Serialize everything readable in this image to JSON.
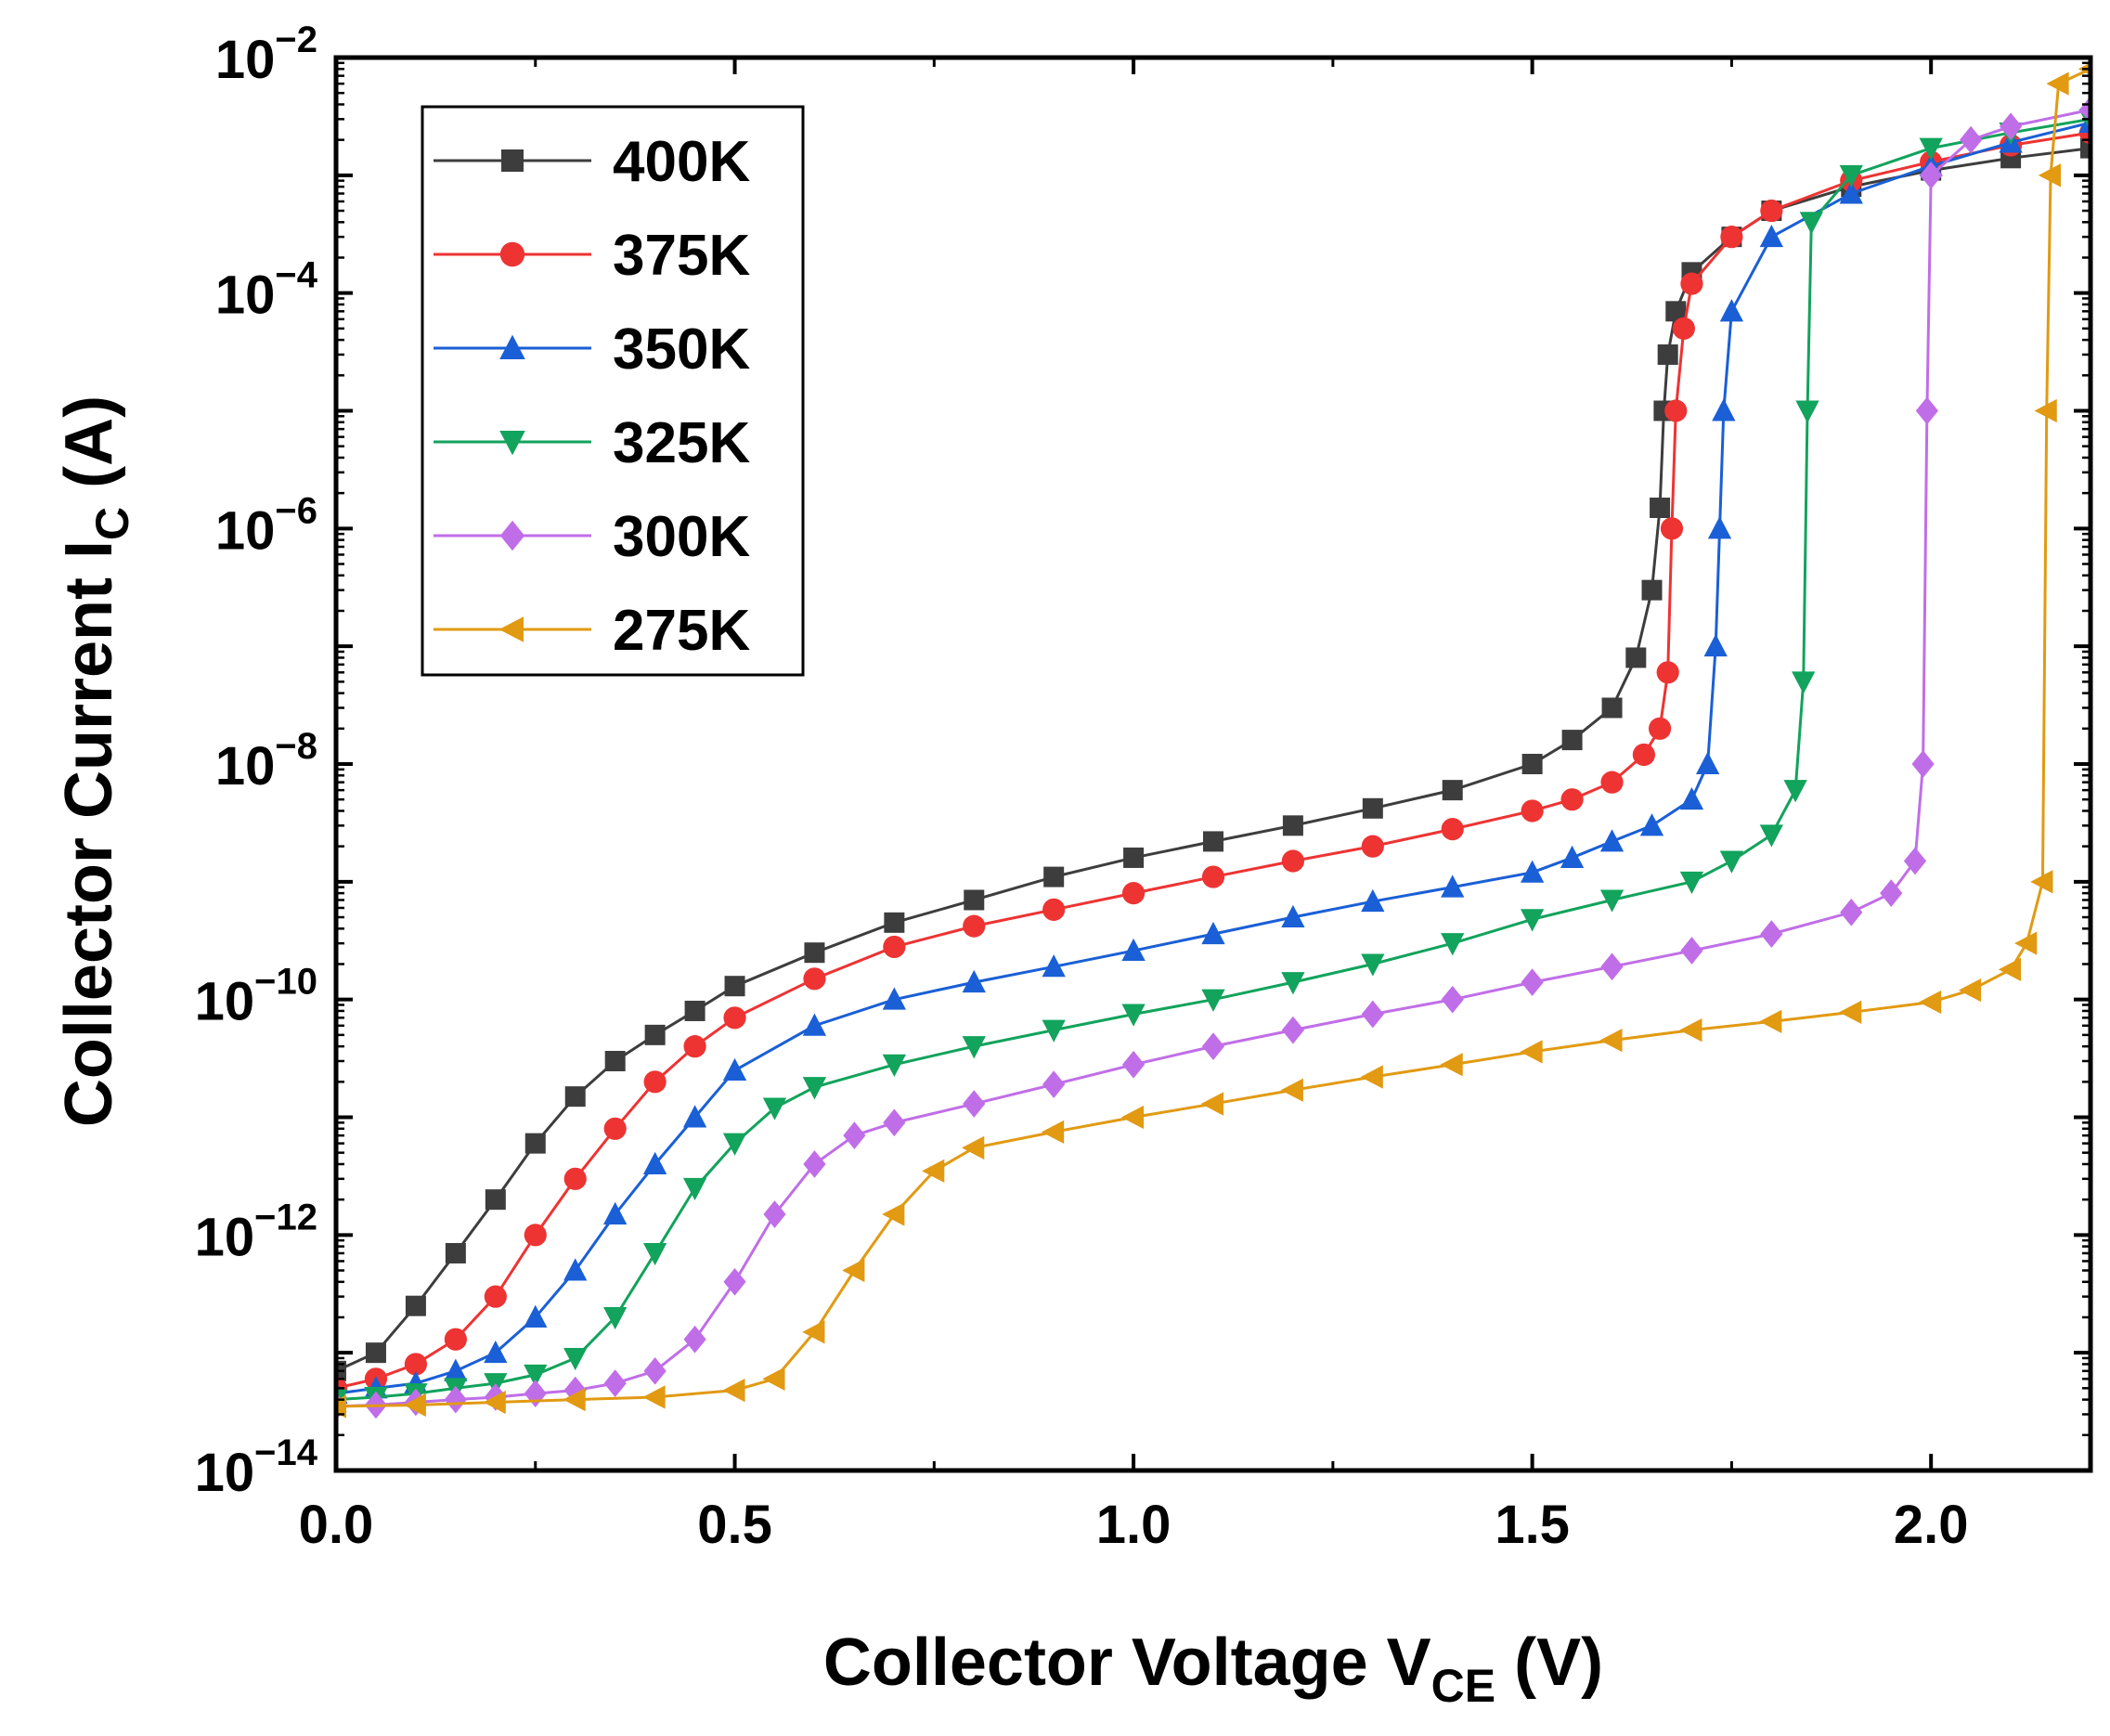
{
  "chart_data": {
    "type": "line",
    "title": "",
    "xlabel": {
      "main": "Collector Voltage V",
      "sub": "CE",
      "unit": " (V)"
    },
    "ylabel": {
      "main": "Collector Current I",
      "sub": "C",
      "unit": " (A)"
    },
    "xlim": [
      0,
      2.2
    ],
    "ylim": [
      1e-14,
      0.01
    ],
    "yscale": "log",
    "x_ticks": [
      "0.0",
      "0.5",
      "1.0",
      "1.5",
      "2.0"
    ],
    "y_ticks": [
      {
        "base": "10",
        "exp": "−14"
      },
      {
        "base": "10",
        "exp": "−12"
      },
      {
        "base": "10",
        "exp": "−10"
      },
      {
        "base": "10",
        "exp": "−8"
      },
      {
        "base": "10",
        "exp": "−6"
      },
      {
        "base": "10",
        "exp": "−4"
      },
      {
        "base": "10",
        "exp": "−2"
      }
    ],
    "grid": false,
    "legend_position": "top-left",
    "series": [
      {
        "name": "400K",
        "color": "#3d3d3d",
        "marker": "square",
        "x": [
          0.0,
          0.05,
          0.1,
          0.15,
          0.2,
          0.25,
          0.3,
          0.35,
          0.4,
          0.45,
          0.5,
          0.6,
          0.7,
          0.8,
          0.9,
          1.0,
          1.1,
          1.2,
          1.3,
          1.4,
          1.5,
          1.55,
          1.6,
          1.63,
          1.65,
          1.66,
          1.665,
          1.67,
          1.68,
          1.7,
          1.75,
          1.8,
          1.9,
          2.0,
          2.1,
          2.2
        ],
        "y": [
          7e-14,
          1e-13,
          2.5e-13,
          7e-13,
          2e-12,
          6e-12,
          1.5e-11,
          3e-11,
          5e-11,
          8e-11,
          1.3e-10,
          2.5e-10,
          4.5e-10,
          7e-10,
          1.1e-09,
          1.6e-09,
          2.2e-09,
          3e-09,
          4.2e-09,
          6e-09,
          1e-08,
          1.6e-08,
          3e-08,
          8e-08,
          3e-07,
          1.5e-06,
          1e-05,
          3e-05,
          7e-05,
          0.00015,
          0.0003,
          0.0005,
          0.0008,
          0.0011,
          0.0014,
          0.0017
        ]
      },
      {
        "name": "375K",
        "color": "#ee3333",
        "marker": "circle",
        "x": [
          0.0,
          0.05,
          0.1,
          0.15,
          0.2,
          0.25,
          0.3,
          0.35,
          0.4,
          0.45,
          0.5,
          0.6,
          0.7,
          0.8,
          0.9,
          1.0,
          1.1,
          1.2,
          1.3,
          1.4,
          1.5,
          1.55,
          1.6,
          1.64,
          1.66,
          1.67,
          1.675,
          1.68,
          1.69,
          1.7,
          1.75,
          1.8,
          1.9,
          2.0,
          2.1,
          2.2
        ],
        "y": [
          5e-14,
          6e-14,
          8e-14,
          1.3e-13,
          3e-13,
          1e-12,
          3e-12,
          8e-12,
          2e-11,
          4e-11,
          7e-11,
          1.5e-10,
          2.8e-10,
          4.2e-10,
          5.8e-10,
          8e-10,
          1.1e-09,
          1.5e-09,
          2e-09,
          2.8e-09,
          4e-09,
          5e-09,
          7e-09,
          1.2e-08,
          2e-08,
          6e-08,
          1e-06,
          1e-05,
          5e-05,
          0.00012,
          0.0003,
          0.0005,
          0.0009,
          0.0013,
          0.0018,
          0.0023
        ]
      },
      {
        "name": "350K",
        "color": "#1a5fd6",
        "marker": "triangle-up",
        "x": [
          0.0,
          0.05,
          0.1,
          0.15,
          0.2,
          0.25,
          0.3,
          0.35,
          0.4,
          0.45,
          0.5,
          0.6,
          0.7,
          0.8,
          0.9,
          1.0,
          1.1,
          1.2,
          1.3,
          1.4,
          1.5,
          1.55,
          1.6,
          1.65,
          1.7,
          1.72,
          1.73,
          1.735,
          1.74,
          1.75,
          1.8,
          1.9,
          2.0,
          2.1,
          2.2
        ],
        "y": [
          4.5e-14,
          5e-14,
          5.5e-14,
          7e-14,
          1e-13,
          2e-13,
          5e-13,
          1.5e-12,
          4e-12,
          1e-11,
          2.5e-11,
          6e-11,
          1e-10,
          1.4e-10,
          1.9e-10,
          2.6e-10,
          3.6e-10,
          5e-10,
          6.8e-10,
          9e-10,
          1.2e-09,
          1.6e-09,
          2.2e-09,
          3e-09,
          5e-09,
          1e-08,
          1e-07,
          1e-06,
          1e-05,
          7e-05,
          0.0003,
          0.0007,
          0.0012,
          0.0019,
          0.0028
        ]
      },
      {
        "name": "325K",
        "color": "#12a35c",
        "marker": "triangle-down",
        "x": [
          0.0,
          0.05,
          0.1,
          0.15,
          0.2,
          0.25,
          0.3,
          0.35,
          0.4,
          0.45,
          0.5,
          0.55,
          0.6,
          0.7,
          0.8,
          0.9,
          1.0,
          1.1,
          1.2,
          1.3,
          1.4,
          1.5,
          1.6,
          1.7,
          1.75,
          1.8,
          1.83,
          1.84,
          1.845,
          1.85,
          1.9,
          2.0,
          2.1,
          2.2
        ],
        "y": [
          4e-14,
          4.2e-14,
          4.5e-14,
          5e-14,
          5.5e-14,
          6.5e-14,
          9e-14,
          2e-13,
          7e-13,
          2.5e-12,
          6e-12,
          1.2e-11,
          1.8e-11,
          2.8e-11,
          4e-11,
          5.5e-11,
          7.5e-11,
          1e-10,
          1.4e-10,
          2e-10,
          3e-10,
          4.8e-10,
          7e-10,
          1e-09,
          1.5e-09,
          2.5e-09,
          6e-09,
          5e-08,
          1e-05,
          0.0004,
          0.001,
          0.0017,
          0.0023,
          0.003
        ]
      },
      {
        "name": "300K",
        "color": "#c06ee8",
        "marker": "diamond",
        "x": [
          0.0,
          0.05,
          0.1,
          0.15,
          0.2,
          0.25,
          0.3,
          0.35,
          0.4,
          0.45,
          0.5,
          0.55,
          0.6,
          0.65,
          0.7,
          0.8,
          0.9,
          1.0,
          1.1,
          1.2,
          1.3,
          1.4,
          1.5,
          1.6,
          1.7,
          1.8,
          1.9,
          1.95,
          1.98,
          1.99,
          1.995,
          2.0,
          2.05,
          2.1,
          2.2
        ],
        "y": [
          3.5e-14,
          3.6e-14,
          3.8e-14,
          4e-14,
          4.2e-14,
          4.5e-14,
          4.8e-14,
          5.5e-14,
          7e-14,
          1.3e-13,
          4e-13,
          1.5e-12,
          4e-12,
          7e-12,
          9e-12,
          1.3e-11,
          1.9e-11,
          2.8e-11,
          4e-11,
          5.5e-11,
          7.5e-11,
          1e-10,
          1.4e-10,
          1.9e-10,
          2.6e-10,
          3.6e-10,
          5.5e-10,
          8e-10,
          1.5e-09,
          1e-08,
          1e-05,
          0.001,
          0.002,
          0.0026,
          0.0036
        ]
      },
      {
        "name": "275K",
        "color": "#e19a12",
        "marker": "triangle-left",
        "x": [
          0.0,
          0.1,
          0.2,
          0.3,
          0.4,
          0.5,
          0.55,
          0.6,
          0.65,
          0.7,
          0.75,
          0.8,
          0.9,
          1.0,
          1.1,
          1.2,
          1.3,
          1.4,
          1.5,
          1.6,
          1.7,
          1.8,
          1.9,
          2.0,
          2.05,
          2.1,
          2.12,
          2.14,
          2.145,
          2.15,
          2.16,
          2.2
        ],
        "y": [
          3.5e-14,
          3.6e-14,
          3.8e-14,
          4e-14,
          4.2e-14,
          4.8e-14,
          6e-14,
          1.5e-13,
          5e-13,
          1.5e-12,
          3.5e-12,
          5.5e-12,
          7.5e-12,
          1e-11,
          1.3e-11,
          1.7e-11,
          2.2e-11,
          2.8e-11,
          3.6e-11,
          4.5e-11,
          5.5e-11,
          6.5e-11,
          7.8e-11,
          9.5e-11,
          1.2e-10,
          1.8e-10,
          3e-10,
          1e-09,
          1e-05,
          0.001,
          0.006,
          0.008
        ]
      }
    ]
  }
}
